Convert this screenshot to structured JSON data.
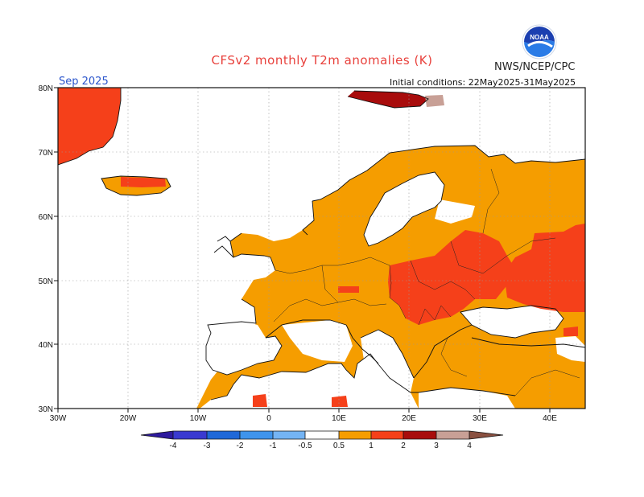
{
  "header": {
    "title": "CFSv2 monthly T2m anomalies (K)",
    "agency": "NWS/NCEP/CPC",
    "logo_text": "NOAA",
    "valid_month": "Sep 2025",
    "initial_conditions": "Initial conditions: 22May2025-31May2025"
  },
  "map": {
    "region": "Europe",
    "lon_range": [
      -30,
      45
    ],
    "lat_range": [
      30,
      80
    ],
    "lon_tick_labels": [
      "30W",
      "20W",
      "10W",
      "0",
      "10E",
      "20E",
      "30E",
      "40E"
    ],
    "lat_tick_labels": [
      "30N",
      "40N",
      "50N",
      "60N",
      "70N",
      "80N"
    ],
    "gridlines": true
  },
  "colorbar": {
    "tick_labels": [
      "-4",
      "-3",
      "-2",
      "-1",
      "-0.5",
      "0.5",
      "1",
      "2",
      "3",
      "4"
    ],
    "colors": [
      "#2e1a9e",
      "#3a3ad0",
      "#1f68d8",
      "#3f94ec",
      "#74b4f4",
      "#ffffff",
      "#f59d00",
      "#f5401a",
      "#a80c0c",
      "#c8a096",
      "#8a5040"
    ]
  },
  "anomaly_colors": {
    "0.5-1": "#f59d00",
    "1-2": "#f5401a",
    "2-3": "#a80c0c",
    "3-4": "#c8a096"
  }
}
